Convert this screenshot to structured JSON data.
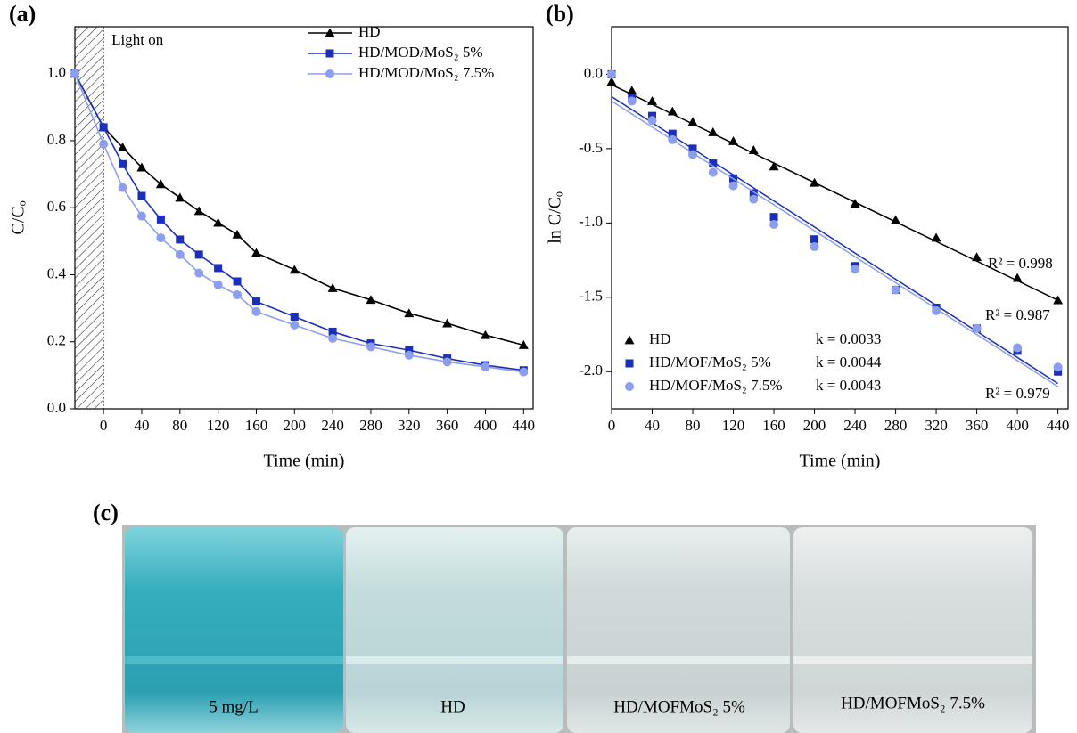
{
  "chart_data": [
    {
      "type": "line",
      "panel_label": "(a)",
      "y_label": "C/Cₒ",
      "x_label": "Time (min)",
      "annotation": "Light on",
      "dark_period": [
        -30,
        0
      ],
      "xlim": [
        -30,
        450
      ],
      "ylim": [
        0,
        1.14
      ],
      "xticks": [
        0,
        40,
        80,
        120,
        160,
        200,
        240,
        280,
        320,
        360,
        400,
        440
      ],
      "yticks": [
        {
          "value": 0,
          "label": "0.0"
        },
        0.2,
        0.4,
        0.6,
        0.8,
        {
          "value": 1,
          "label": "1.0"
        }
      ],
      "x": [
        -30,
        0,
        20,
        40,
        60,
        80,
        100,
        120,
        140,
        160,
        200,
        240,
        280,
        320,
        360,
        400,
        440
      ],
      "series": [
        {
          "name": "HD",
          "color": "#000000",
          "marker": "triangle",
          "values": [
            1.0,
            0.84,
            0.78,
            0.72,
            0.67,
            0.63,
            0.59,
            0.555,
            0.52,
            0.465,
            0.415,
            0.36,
            0.325,
            0.285,
            0.255,
            0.22,
            0.19
          ]
        },
        {
          "name": "HD/MOD/MoS₂ 5%",
          "color": "#1a30b8",
          "marker": "square",
          "values": [
            1.0,
            0.84,
            0.73,
            0.635,
            0.565,
            0.505,
            0.46,
            0.42,
            0.38,
            0.32,
            0.275,
            0.23,
            0.195,
            0.175,
            0.15,
            0.13,
            0.115
          ]
        },
        {
          "name": "HD/MOD/MoS₂ 7.5%",
          "color": "#8c9ef0",
          "marker": "circle",
          "values": [
            1.0,
            0.79,
            0.66,
            0.575,
            0.51,
            0.46,
            0.405,
            0.37,
            0.34,
            0.29,
            0.25,
            0.21,
            0.185,
            0.16,
            0.14,
            0.125,
            0.11
          ]
        }
      ]
    },
    {
      "type": "scatter",
      "panel_label": "(b)",
      "y_label": "ln C/Cₒ",
      "x_label": "Time (min)",
      "xlim": [
        0,
        450
      ],
      "ylim": [
        -2.25,
        0.32
      ],
      "xticks": [
        0,
        40,
        80,
        120,
        160,
        200,
        240,
        280,
        320,
        360,
        400,
        440
      ],
      "yticks": [
        {
          "value": 0,
          "label": "0.0"
        },
        -0.5,
        {
          "value": -1,
          "label": "-1.0"
        },
        -1.5,
        {
          "value": -2,
          "label": "-2.0"
        }
      ],
      "x": [
        0,
        20,
        40,
        60,
        80,
        100,
        120,
        140,
        160,
        200,
        240,
        280,
        320,
        360,
        400,
        440
      ],
      "series": [
        {
          "name": "HD",
          "color": "#000000",
          "marker": "triangle",
          "k_label": "k = 0.0033",
          "r2_label": "R² = 0.998",
          "values": [
            -0.05,
            -0.11,
            -0.18,
            -0.25,
            -0.32,
            -0.39,
            -0.45,
            -0.51,
            -0.62,
            -0.73,
            -0.87,
            -0.98,
            -1.1,
            -1.23,
            -1.37,
            -1.52
          ],
          "fit": {
            "x": [
              0,
              440
            ],
            "values": [
              -0.07,
              -1.52
            ]
          }
        },
        {
          "name": "HD/MOF/MoS₂ 5%",
          "color": "#1a30b8",
          "marker": "square",
          "k_label": "k = 0.0044",
          "r2_label": "R² = 0.987",
          "values": [
            0,
            -0.16,
            -0.28,
            -0.4,
            -0.5,
            -0.6,
            -0.7,
            -0.8,
            -0.96,
            -1.11,
            -1.29,
            -1.45,
            -1.57,
            -1.71,
            -1.86,
            -2.0
          ],
          "fit": {
            "x": [
              0,
              440
            ],
            "values": [
              -0.15,
              -2.08
            ]
          }
        },
        {
          "name": "HD/MOF/MoS₂ 7.5%",
          "color": "#8c9ef0",
          "marker": "circle",
          "k_label": "k = 0.0043",
          "r2_label": "R² = 0.979",
          "values": [
            0,
            -0.18,
            -0.31,
            -0.44,
            -0.54,
            -0.66,
            -0.75,
            -0.84,
            -1.01,
            -1.16,
            -1.31,
            -1.45,
            -1.59,
            -1.71,
            -1.84,
            -1.97
          ],
          "fit": {
            "x": [
              0,
              440
            ],
            "values": [
              -0.18,
              -2.1
            ]
          }
        }
      ]
    }
  ],
  "photo": {
    "panel_label": "(c)",
    "captions": [
      "5 mg/L",
      "HD",
      "HD/MOFMoS₂ 5%",
      "HD/MOFMoS₂ 7.5%"
    ]
  }
}
